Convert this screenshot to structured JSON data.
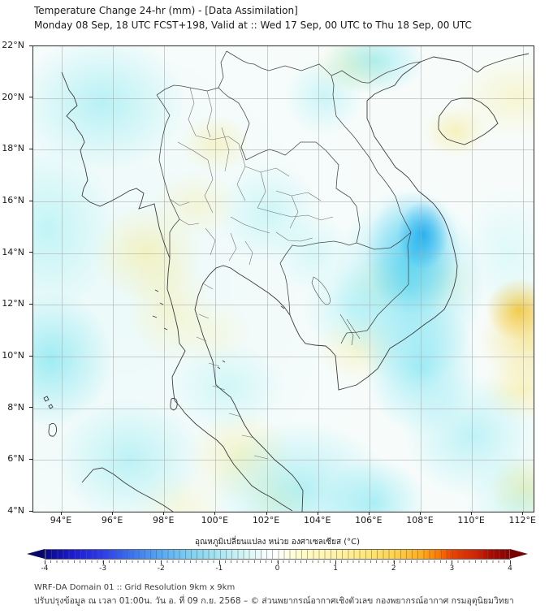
{
  "header": {
    "title": "Temperature Change 24-hr (mm) - [Data Assimilation]",
    "subtitle": "Monday 08 Sep, 18 UTC FCST+198, Valid at :: Wed 17 Sep, 00 UTC to Thu 18 Sep, 00 UTC"
  },
  "chart_data": {
    "type": "heatmap",
    "title": "Temperature Change 24-hr (mm) - [Data Assimilation]",
    "subtitle": "Monday 08 Sep, 18 UTC FCST+198, Valid at :: Wed 17 Sep, 00 UTC to Thu 18 Sep, 00 UTC",
    "projection": "lat-lon map of Thailand / Indochina",
    "grid": true,
    "lon_range_deg_east": [
      92.9,
      112.4
    ],
    "lat_range_deg_north": [
      4,
      22
    ],
    "lat_ticks": [
      {
        "value": 22,
        "label": "22°N"
      },
      {
        "value": 20,
        "label": "20°N"
      },
      {
        "value": 18,
        "label": "18°N"
      },
      {
        "value": 16,
        "label": "16°N"
      },
      {
        "value": 14,
        "label": "14°N"
      },
      {
        "value": 12,
        "label": "12°N"
      },
      {
        "value": 10,
        "label": "10°N"
      },
      {
        "value": 8,
        "label": "8°N"
      },
      {
        "value": 6,
        "label": "6°N"
      },
      {
        "value": 4,
        "label": "4°N"
      }
    ],
    "lon_ticks": [
      {
        "value": 94,
        "label": "94°E"
      },
      {
        "value": 96,
        "label": "96°E"
      },
      {
        "value": 98,
        "label": "98°E"
      },
      {
        "value": 100,
        "label": "100°E"
      },
      {
        "value": 102,
        "label": "102°E"
      },
      {
        "value": 104,
        "label": "104°E"
      },
      {
        "value": 106,
        "label": "106°E"
      },
      {
        "value": 108,
        "label": "108°E"
      },
      {
        "value": 110,
        "label": "110°E"
      },
      {
        "value": 112,
        "label": "112°E"
      }
    ],
    "colorbar": {
      "label": "อุณหภูมิเปลี่ยนแปลง หน่วย องศาเซลเซียส (°C)",
      "units": "°C",
      "min": -4,
      "max": 4,
      "cell_step": 0.1,
      "ticks": [
        {
          "value": -4,
          "label": "-4"
        },
        {
          "value": -3,
          "label": "-3"
        },
        {
          "value": -2,
          "label": "-2"
        },
        {
          "value": -1,
          "label": "-1"
        },
        {
          "value": 0,
          "label": "0"
        },
        {
          "value": 1,
          "label": "1"
        },
        {
          "value": 2,
          "label": "2"
        },
        {
          "value": 3,
          "label": "3"
        },
        {
          "value": 4,
          "label": "4"
        }
      ],
      "stops": [
        {
          "value": -4,
          "color": "#08088c"
        },
        {
          "value": -3,
          "color": "#2d3cf0"
        },
        {
          "value": -2,
          "color": "#55aaf5"
        },
        {
          "value": -1,
          "color": "#a8e6f2"
        },
        {
          "value": 0,
          "color": "#ffffff"
        },
        {
          "value": 1,
          "color": "#fff3a8"
        },
        {
          "value": 2,
          "color": "#ffd34d"
        },
        {
          "value": 3,
          "color": "#ef4400"
        },
        {
          "value": 4,
          "color": "#8f0000"
        }
      ]
    },
    "anomaly_features": [
      {
        "area": "Vietnam central coast ~13-15°N offshore core",
        "change_c": -2.5
      },
      {
        "area": "South China Sea along Vietnam coast 11-16°N",
        "change_c": -1.5
      },
      {
        "area": "Gulf of Tonkin / top of map",
        "change_c": -1.0
      },
      {
        "area": "Andaman Sea and Myanmar coast (top-left)",
        "change_c": -0.5
      },
      {
        "area": "west sea near 10°N left edge",
        "change_c": -1.0
      },
      {
        "area": "southern waters 4-8°N (Gulf of Thailand)",
        "change_c": -1.0
      },
      {
        "area": "northeast Thailand patches",
        "change_c": -0.5
      },
      {
        "area": "central Myanmar",
        "change_c": 0.5
      },
      {
        "area": "northern Thailand (Nan region)",
        "change_c": 0.5
      },
      {
        "area": "Hainan Island interior",
        "change_c": 0.5
      },
      {
        "area": "right edge near 112°E 12°N",
        "change_c": 1.5
      },
      {
        "area": "Mekong delta and lower peninsula",
        "change_c": 0.5
      }
    ]
  },
  "footer": {
    "line1": "WRF-DA Domain 01 :: Grid Resolution 9km x 9km",
    "line2": "ปรับปรุงข้อมูล ณ เวลา 01:00น. วัน อ. ที่ 09 ก.ย. 2568 – © ส่วนพยากรณ์อากาศเชิงตัวเลข กองพยากรณ์อากาศ กรมอุตุนิยมวิทยา"
  }
}
